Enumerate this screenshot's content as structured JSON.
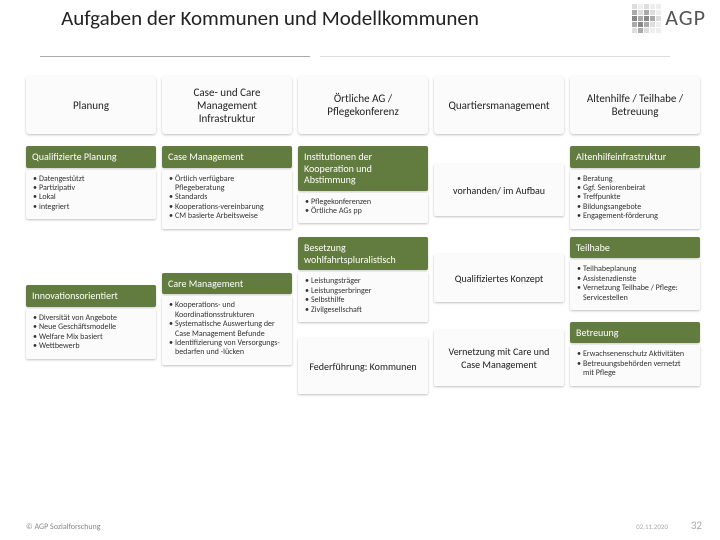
{
  "title": "Aufgaben der Kommunen und Modellkommunen",
  "logo_text": "AGP",
  "columns": [
    {
      "head": "Planung"
    },
    {
      "head": "Case- und Care Management Infrastruktur"
    },
    {
      "head": "Örtliche AG / Pflegekonferenz"
    },
    {
      "head": "Quartiersmanagement"
    },
    {
      "head": "Altenhilfe / Teilhabe / Betreuung"
    }
  ],
  "col1_sub1": "Qualifizierte Planung",
  "col1_body1": [
    "Datengestützt",
    "Partizipativ",
    "Lokal",
    "integriert"
  ],
  "col1_sub2": "Innovationsorientiert",
  "col1_body2": [
    "Diversität von Angebote",
    "Neue Geschäftsmodelle",
    "Welfare Mix basiert",
    "Wettbewerb"
  ],
  "col2_sub1": "Case Management",
  "col2_body1": [
    "Örtlich verfügbare Pflegeberatung",
    "Standards",
    "Kooperations-vereinbarung",
    "CM basierte Arbeitsweise"
  ],
  "col2_sub2": "Care Management",
  "col2_body2": [
    "Kooperations- und Koordinationsstrukturen",
    "Systematische Auswertung der Case Management Befunde",
    "Identifizierung von Versorgungs-bedarfen und -lücken"
  ],
  "col3_sub1": "Institutionen der Kooperation und Abstimmung",
  "col3_body1": [
    "Pflegekonferenzen",
    "Örtliche AGs pp"
  ],
  "col3_sub2": "Besetzung wohlfahrtspluralistisch",
  "col3_body2": [
    "Leistungsträger",
    "Leistungserbringer",
    "Selbsthilfe",
    "Zivilgesellschaft"
  ],
  "col3_center": "Federführung: Kommunen",
  "col4_center1": "vorhanden/ im Aufbau",
  "col4_center2": "Qualifiziertes Konzept",
  "col4_center3": "Vernetzung mit Care und Case Management",
  "col5_sub1": "Altenhilfeinfrastruktur",
  "col5_body1": [
    "Beratung",
    "Ggf. Seniorenbeirat",
    "Treffpunkte",
    "Bildungsangebote",
    "Engagement-förderung"
  ],
  "col5_sub2": "Teilhabe",
  "col5_body2": [
    "Teilhabeplanung",
    "Assistenzdienste",
    "Vernetzung Teilhabe / Pflege: Servicestellen"
  ],
  "col5_sub3": "Betreuung",
  "col5_body3": [
    "Erwachsenenschutz Aktivitäten",
    "Betreuungsbehörden vernetzt mit Pflege"
  ],
  "footer_left": "©  AGP Sozialforschung",
  "footer_date": "02.11.2020",
  "page_num": "32",
  "colors": {
    "green": "#627b3f",
    "card_bg": "#fbfbfb"
  }
}
